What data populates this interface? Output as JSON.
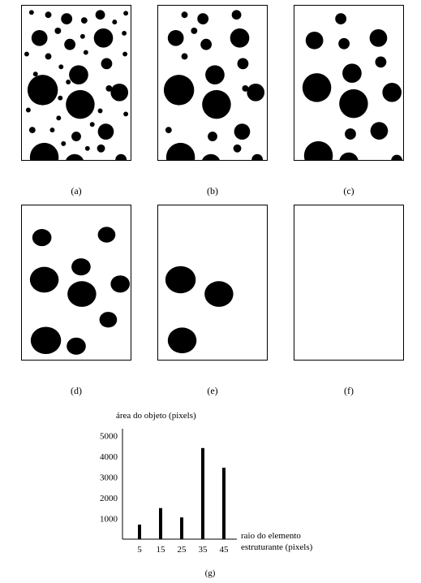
{
  "panels": [
    {
      "label": "(a)"
    },
    {
      "label": "(b)"
    },
    {
      "label": "(c)"
    },
    {
      "label": "(d)"
    },
    {
      "label": "(e)"
    },
    {
      "label": "(f)"
    }
  ],
  "chart_data": {
    "type": "bar",
    "categories": [
      "5",
      "15",
      "25",
      "35",
      "45"
    ],
    "values": [
      700,
      1500,
      1050,
      4400,
      3450
    ],
    "yticks": [
      1000,
      2000,
      3000,
      4000,
      5000
    ],
    "ylim": [
      0,
      5500
    ],
    "ylabel": "área do objeto (pixels)",
    "xlabel_line1": "raio do elemento",
    "xlabel_line2": "estruturante (pixels)",
    "caption": "(g)"
  }
}
